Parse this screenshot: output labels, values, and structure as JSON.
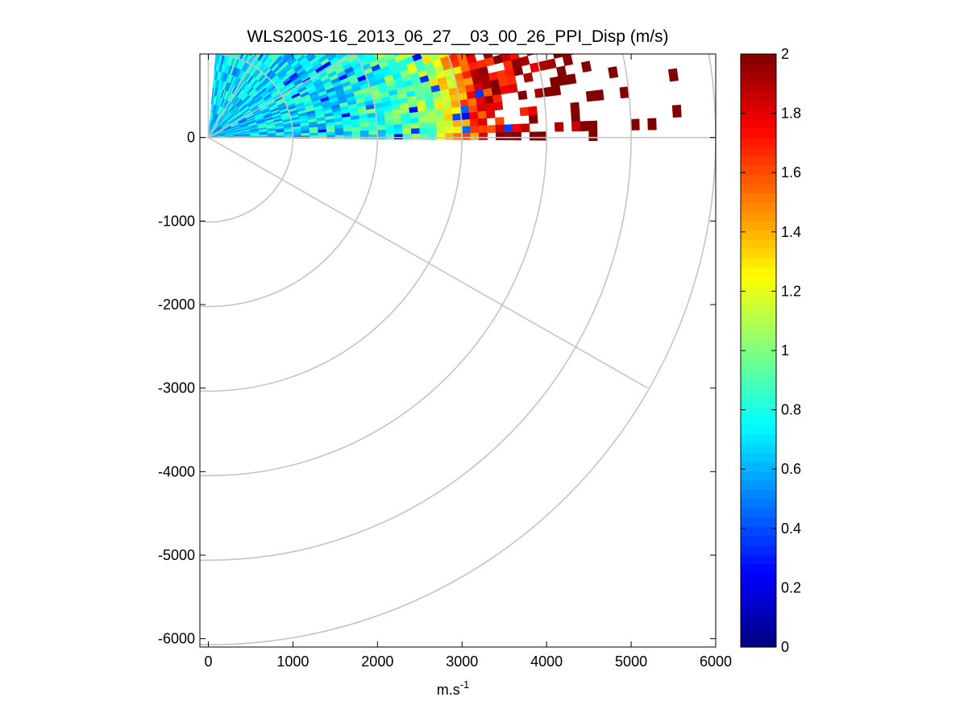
{
  "chart_data": {
    "type": "heatmap",
    "subtype": "ppi-polar-scan",
    "title": "WLS200S-16_2013_06_27__03_00_26_PPI_Disp (m/s)",
    "xlabel": "m.s",
    "xlabel_superscript": "-1",
    "ylabel": "",
    "xlim": [
      -100,
      6000
    ],
    "ylim": [
      -6100,
      1000
    ],
    "xticks": [
      0,
      1000,
      2000,
      3000,
      4000,
      5000,
      6000
    ],
    "xtick_labels": [
      "0",
      "1000",
      "2000",
      "3000",
      "4000",
      "5000",
      "6000"
    ],
    "yticks": [
      0,
      -1000,
      -2000,
      -3000,
      -4000,
      -5000,
      -6000
    ],
    "ytick_labels": [
      "0",
      "-1000",
      "-2000",
      "-3000",
      "-4000",
      "-5000",
      "-6000"
    ],
    "colorbar": {
      "colormap": "jet",
      "clim": [
        0,
        2
      ],
      "ticks": [
        0,
        0.2,
        0.4,
        0.6,
        0.8,
        1,
        1.2,
        1.4,
        1.6,
        1.8,
        2
      ],
      "tick_labels": [
        "0",
        "0.2",
        "0.4",
        "0.6",
        "0.8",
        "1",
        "1.2",
        "1.4",
        "1.6",
        "1.8",
        "2"
      ]
    },
    "polar_grid": {
      "range_rings_m": [
        1000,
        2000,
        3000,
        4000,
        5000,
        6000
      ],
      "spokes_deg": [
        0,
        30,
        60,
        90,
        120
      ],
      "spoke_length_m": 6000
    },
    "scan": {
      "azimuth_start_deg": 5,
      "azimuth_end_deg": 90,
      "azimuth_step_deg": 1.5,
      "range_gate_m": 100,
      "max_range_m": 6000,
      "description": "Dispersion (m/s) per range gate: ~0.7 near the lidar rising to ~1.0 at mid range and >1.8 beyond ~3000 m, sparse at far range"
    }
  }
}
